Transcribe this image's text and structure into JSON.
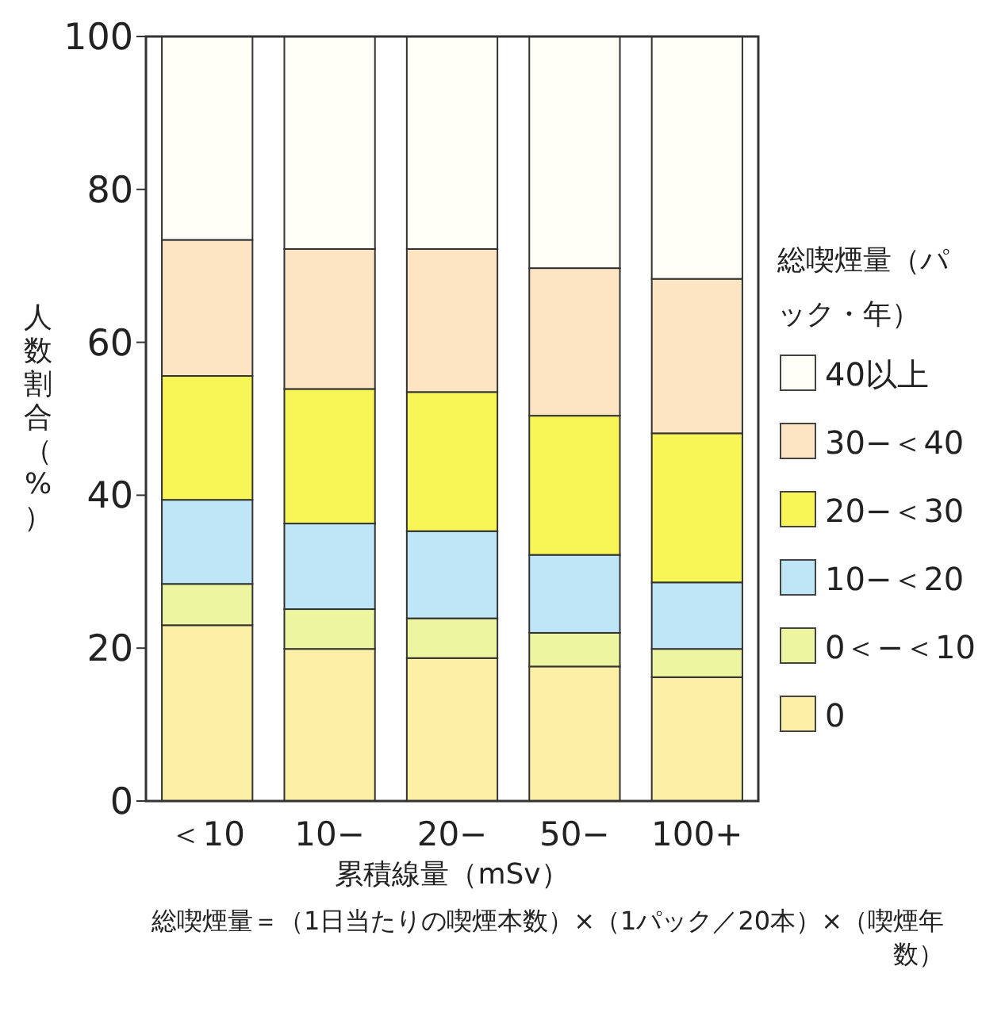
{
  "chart_data": {
    "type": "bar",
    "stacked": true,
    "categories": [
      "＜10",
      "10−",
      "20−",
      "50−",
      "100+"
    ],
    "xlabel": "累積線量（mSv）",
    "ylabel": "人数割合（%）",
    "legend_title": "総喫煙量（パック・年）",
    "ylim": [
      0,
      100
    ],
    "yticks": [
      0,
      20,
      40,
      60,
      80,
      100
    ],
    "legend": "right",
    "grid": false,
    "series": [
      {
        "name": "0",
        "color": "#fcefa6",
        "values": [
          23.0,
          19.9,
          18.7,
          17.6,
          16.2
        ]
      },
      {
        "name": "0＜−＜10",
        "color": "#eef5a0",
        "values": [
          5.4,
          5.2,
          5.2,
          4.4,
          3.7
        ]
      },
      {
        "name": "10−＜20",
        "color": "#bfe6f7",
        "values": [
          11.0,
          11.2,
          11.4,
          10.2,
          8.7
        ]
      },
      {
        "name": "20−＜30",
        "color": "#f8f657",
        "values": [
          16.2,
          17.6,
          18.2,
          18.2,
          19.5
        ]
      },
      {
        "name": "30−＜40",
        "color": "#fde4c2",
        "values": [
          17.8,
          18.3,
          18.7,
          19.3,
          20.2
        ]
      },
      {
        "name": "40以上",
        "color": "#fffef7",
        "values": [
          26.6,
          27.8,
          27.8,
          30.3,
          31.7
        ]
      }
    ],
    "annotations": [
      "総喫煙量＝（1日当たりの喫煙本数）×（1パック／20本）×（喫煙年数）"
    ]
  }
}
